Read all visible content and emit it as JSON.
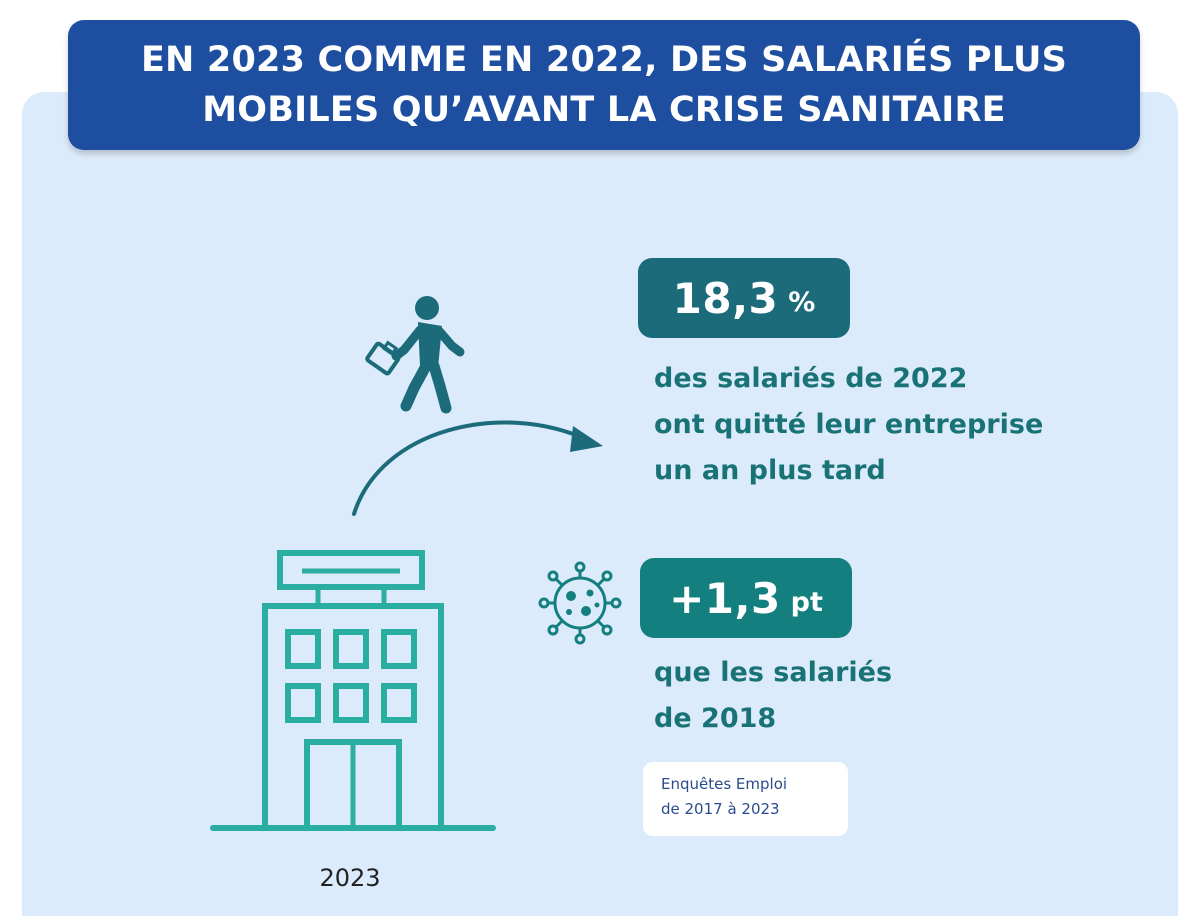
{
  "title": {
    "line1": "EN 2023 COMME EN 2022, DES SALARIÉS PLUS",
    "line2": "MOBILES QU’AVANT LA CRISE SANITAIRE"
  },
  "stat1": {
    "value": "18,3",
    "unit": "%",
    "text_line1": "des salariés de 2022",
    "text_line2": "ont quitté leur entreprise",
    "text_line3": "un an plus tard"
  },
  "stat2": {
    "value": "+1,3",
    "unit": "pt",
    "text_line1": "que les salariés",
    "text_line2": "de 2018"
  },
  "source": {
    "line1": "Enquêtes Emploi",
    "line2": "de 2017 à 2023"
  },
  "year": "2023",
  "icons": [
    "walking-person-with-briefcase-icon",
    "curved-arrow-icon",
    "office-building-icon",
    "virus-icon"
  ],
  "colors": {
    "title_bg": "#1d4ea0",
    "panel_bg": "#dcebfb",
    "badge1_bg": "#1b6b7a",
    "badge2_bg": "#147f7f",
    "teal_text": "#197276",
    "building": "#2aaea2",
    "person": "#1b6b7a"
  }
}
